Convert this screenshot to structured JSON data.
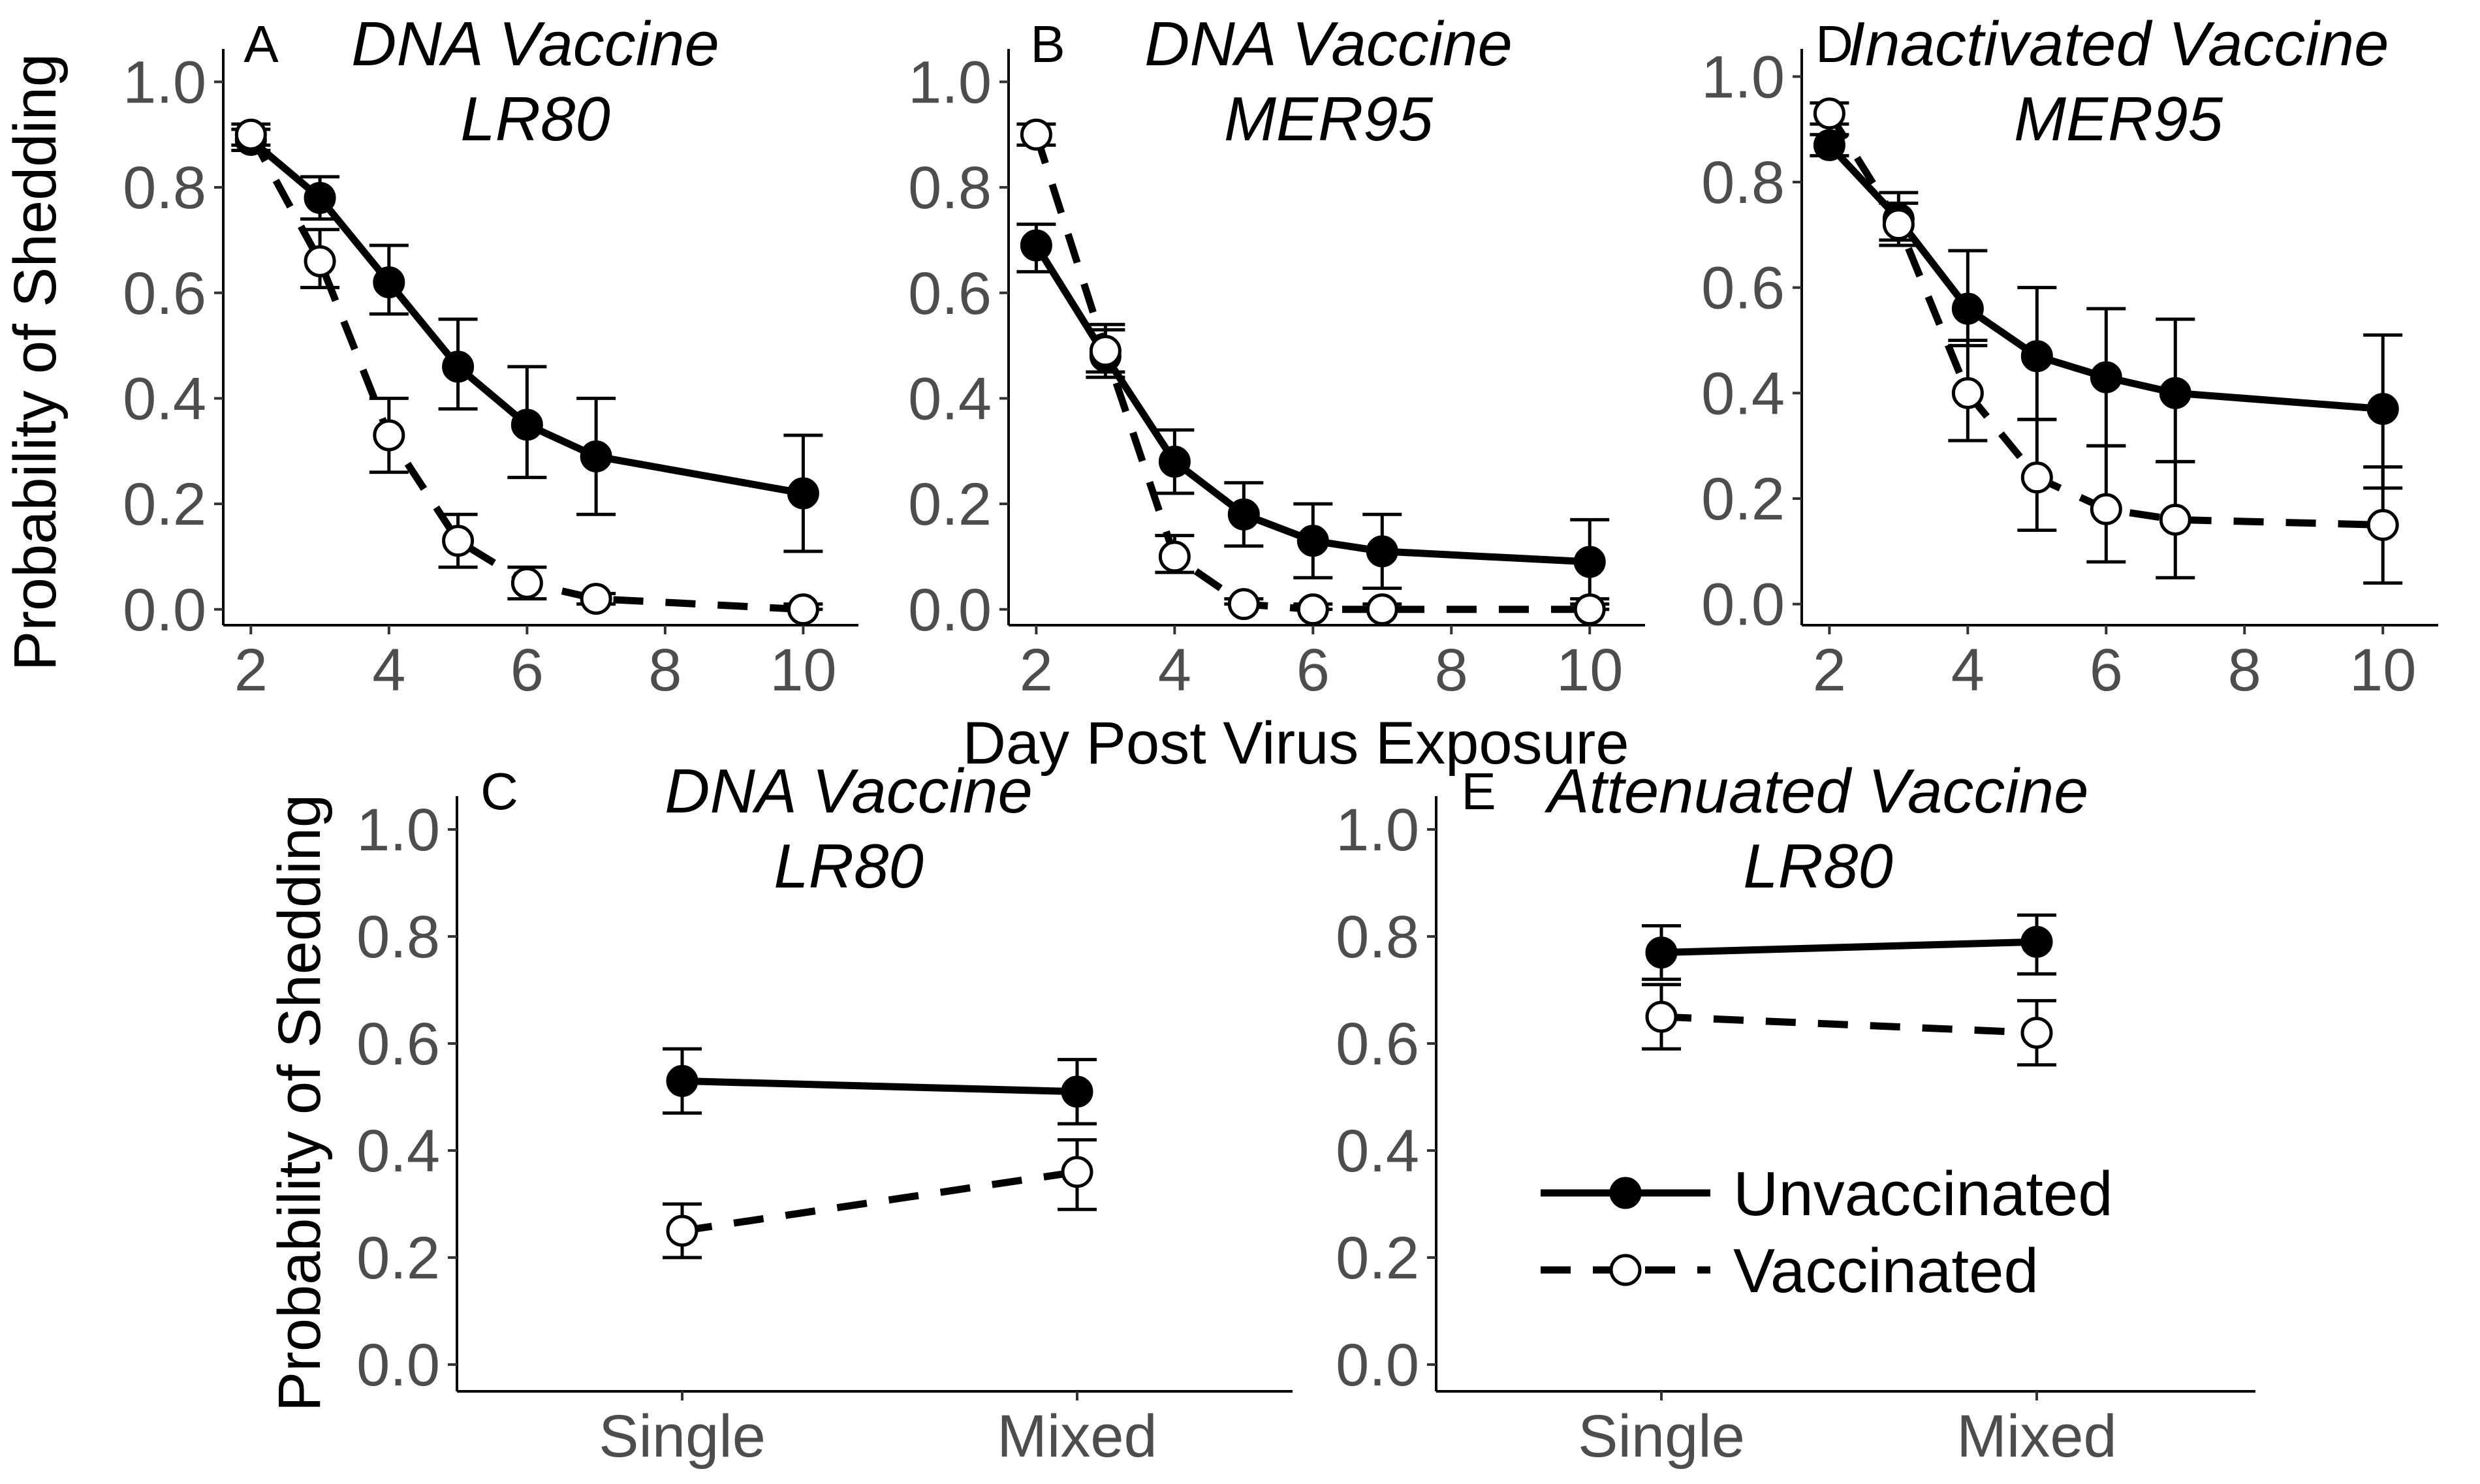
{
  "figure": {
    "y_axis_title": "Probability of Shedding",
    "x_axis_title": "Day Post Virus Exposure"
  },
  "legend": {
    "items": [
      {
        "label": "Unvaccinated",
        "style": "solid",
        "marker": "filled"
      },
      {
        "label": "Vaccinated",
        "style": "dashed",
        "marker": "open"
      }
    ]
  },
  "colors": {
    "line": "#000000",
    "tick_text": "#4d4d4d",
    "open_marker_fill": "#ffffff"
  },
  "chart_data": [
    {
      "id": "A",
      "type": "line",
      "letter": "A",
      "title_line1": "DNA Vaccine",
      "title_line2": "LR80",
      "x": [
        2,
        3,
        4,
        5,
        6,
        7,
        10
      ],
      "xlim": [
        1.6,
        10.8
      ],
      "ylim": [
        -0.03,
        1.05
      ],
      "x_ticks": [
        2,
        4,
        6,
        8,
        10
      ],
      "y_ticks": [
        0.0,
        0.2,
        0.4,
        0.6,
        0.8,
        1.0
      ],
      "y_tick_labels": [
        "0.0",
        "0.2",
        "0.4",
        "0.6",
        "0.8",
        "1.0"
      ],
      "series": [
        {
          "name": "Unvaccinated",
          "values": [
            0.89,
            0.78,
            0.62,
            0.46,
            0.35,
            0.29,
            0.22
          ],
          "lower": [
            0.87,
            0.74,
            0.56,
            0.38,
            0.25,
            0.18,
            0.11
          ],
          "upper": [
            0.91,
            0.82,
            0.69,
            0.55,
            0.46,
            0.4,
            0.33
          ]
        },
        {
          "name": "Vaccinated",
          "values": [
            0.9,
            0.66,
            0.33,
            0.13,
            0.05,
            0.02,
            0.0
          ],
          "lower": [
            0.88,
            0.61,
            0.26,
            0.08,
            0.02,
            0.01,
            0.0
          ],
          "upper": [
            0.92,
            0.72,
            0.4,
            0.18,
            0.08,
            0.03,
            0.01
          ]
        }
      ]
    },
    {
      "id": "B",
      "type": "line",
      "letter": "B",
      "title_line1": "DNA Vaccine",
      "title_line2": "MER95",
      "x": [
        2,
        3,
        4,
        5,
        6,
        7,
        10
      ],
      "xlim": [
        1.6,
        10.8
      ],
      "ylim": [
        -0.03,
        1.05
      ],
      "x_ticks": [
        2,
        4,
        6,
        8,
        10
      ],
      "y_ticks": [
        0.0,
        0.2,
        0.4,
        0.6,
        0.8,
        1.0
      ],
      "y_tick_labels": [
        "0.0",
        "0.2",
        "0.4",
        "0.6",
        "0.8",
        "1.0"
      ],
      "series": [
        {
          "name": "Unvaccinated",
          "values": [
            0.69,
            0.48,
            0.28,
            0.18,
            0.13,
            0.11,
            0.09
          ],
          "lower": [
            0.64,
            0.44,
            0.22,
            0.12,
            0.06,
            0.04,
            0.02
          ],
          "upper": [
            0.73,
            0.53,
            0.34,
            0.24,
            0.2,
            0.18,
            0.17
          ]
        },
        {
          "name": "Vaccinated",
          "values": [
            0.9,
            0.49,
            0.1,
            0.01,
            0.0,
            0.0,
            0.0
          ],
          "lower": [
            0.88,
            0.45,
            0.07,
            0.01,
            0.0,
            0.0,
            0.0
          ],
          "upper": [
            0.92,
            0.54,
            0.14,
            0.02,
            0.01,
            0.01,
            0.01
          ]
        }
      ]
    },
    {
      "id": "D",
      "type": "line",
      "letter": "D",
      "title_line1": "Inactivated Vaccine",
      "title_line2": "MER95",
      "x": [
        2,
        3,
        4,
        5,
        6,
        7,
        10
      ],
      "xlim": [
        1.6,
        10.8
      ],
      "ylim": [
        -0.04,
        1.04
      ],
      "x_ticks": [
        2,
        4,
        6,
        8,
        10
      ],
      "y_ticks": [
        0.0,
        0.2,
        0.4,
        0.6,
        0.8,
        1.0
      ],
      "y_tick_labels": [
        "0.0",
        "0.2",
        "0.4",
        "0.6",
        "0.8",
        "1.0"
      ],
      "series": [
        {
          "name": "Unvaccinated",
          "values": [
            0.87,
            0.73,
            0.56,
            0.47,
            0.43,
            0.4,
            0.37
          ],
          "lower": [
            0.85,
            0.68,
            0.49,
            0.35,
            0.3,
            0.27,
            0.22
          ],
          "upper": [
            0.89,
            0.78,
            0.67,
            0.6,
            0.56,
            0.54,
            0.51
          ]
        },
        {
          "name": "Vaccinated",
          "values": [
            0.93,
            0.72,
            0.4,
            0.24,
            0.18,
            0.16,
            0.15
          ],
          "lower": [
            0.91,
            0.69,
            0.31,
            0.14,
            0.08,
            0.05,
            0.04
          ],
          "upper": [
            0.95,
            0.76,
            0.5,
            0.35,
            0.3,
            0.27,
            0.26
          ]
        }
      ]
    },
    {
      "id": "C",
      "type": "line",
      "letter": "C",
      "title_line1": "DNA Vaccine",
      "title_line2": "LR80",
      "categories": [
        "Single",
        "Mixed"
      ],
      "ylim": [
        -0.05,
        1.05
      ],
      "y_ticks": [
        0.0,
        0.2,
        0.4,
        0.6,
        0.8,
        1.0
      ],
      "y_tick_labels": [
        "0.0",
        "0.2",
        "0.4",
        "0.6",
        "0.8",
        "1.0"
      ],
      "series": [
        {
          "name": "Unvaccinated",
          "values": [
            0.53,
            0.51
          ],
          "lower": [
            0.47,
            0.45
          ],
          "upper": [
            0.59,
            0.57
          ]
        },
        {
          "name": "Vaccinated",
          "values": [
            0.25,
            0.36
          ],
          "lower": [
            0.2,
            0.29
          ],
          "upper": [
            0.3,
            0.42
          ]
        }
      ]
    },
    {
      "id": "E",
      "type": "line",
      "letter": "E",
      "title_line1": "Attenuated Vaccine",
      "title_line2": "LR80",
      "categories": [
        "Single",
        "Mixed"
      ],
      "ylim": [
        -0.05,
        1.05
      ],
      "y_ticks": [
        0.0,
        0.2,
        0.4,
        0.6,
        0.8,
        1.0
      ],
      "y_tick_labels": [
        "0.0",
        "0.2",
        "0.4",
        "0.6",
        "0.8",
        "1.0"
      ],
      "series": [
        {
          "name": "Unvaccinated",
          "values": [
            0.77,
            0.79
          ],
          "lower": [
            0.72,
            0.73
          ],
          "upper": [
            0.82,
            0.84
          ]
        },
        {
          "name": "Vaccinated",
          "values": [
            0.65,
            0.62
          ],
          "lower": [
            0.59,
            0.56
          ],
          "upper": [
            0.71,
            0.68
          ]
        }
      ]
    }
  ]
}
